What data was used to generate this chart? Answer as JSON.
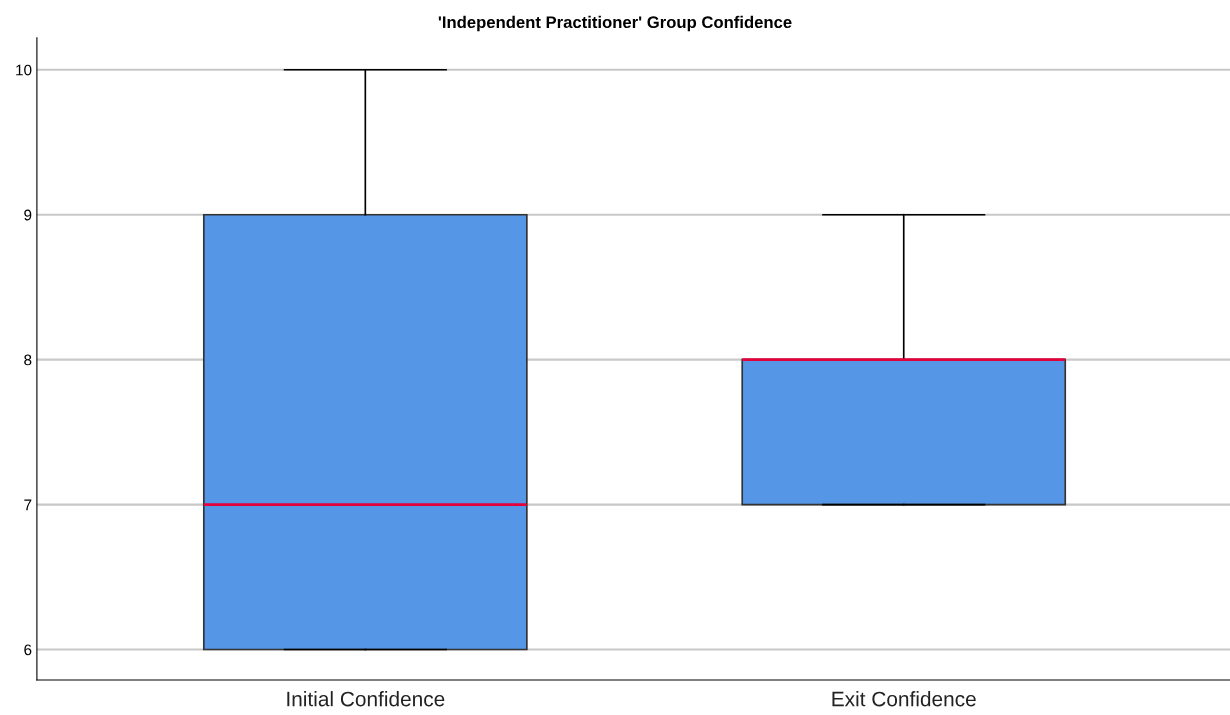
{
  "chart_data": {
    "type": "box",
    "title": "'Independent Practitioner' Group Confidence",
    "categories": [
      "Initial Confidence",
      "Exit Confidence"
    ],
    "boxes": [
      {
        "low": 6,
        "q1": 6,
        "median": 7,
        "q3": 9,
        "high": 10
      },
      {
        "low": 7,
        "q1": 7,
        "median": 8,
        "q3": 8,
        "high": 9
      }
    ],
    "color": "#5596e6",
    "ylim": [
      5.79,
      10.22
    ],
    "yticks": [
      6,
      7,
      8,
      9,
      10
    ],
    "grid": "y"
  }
}
